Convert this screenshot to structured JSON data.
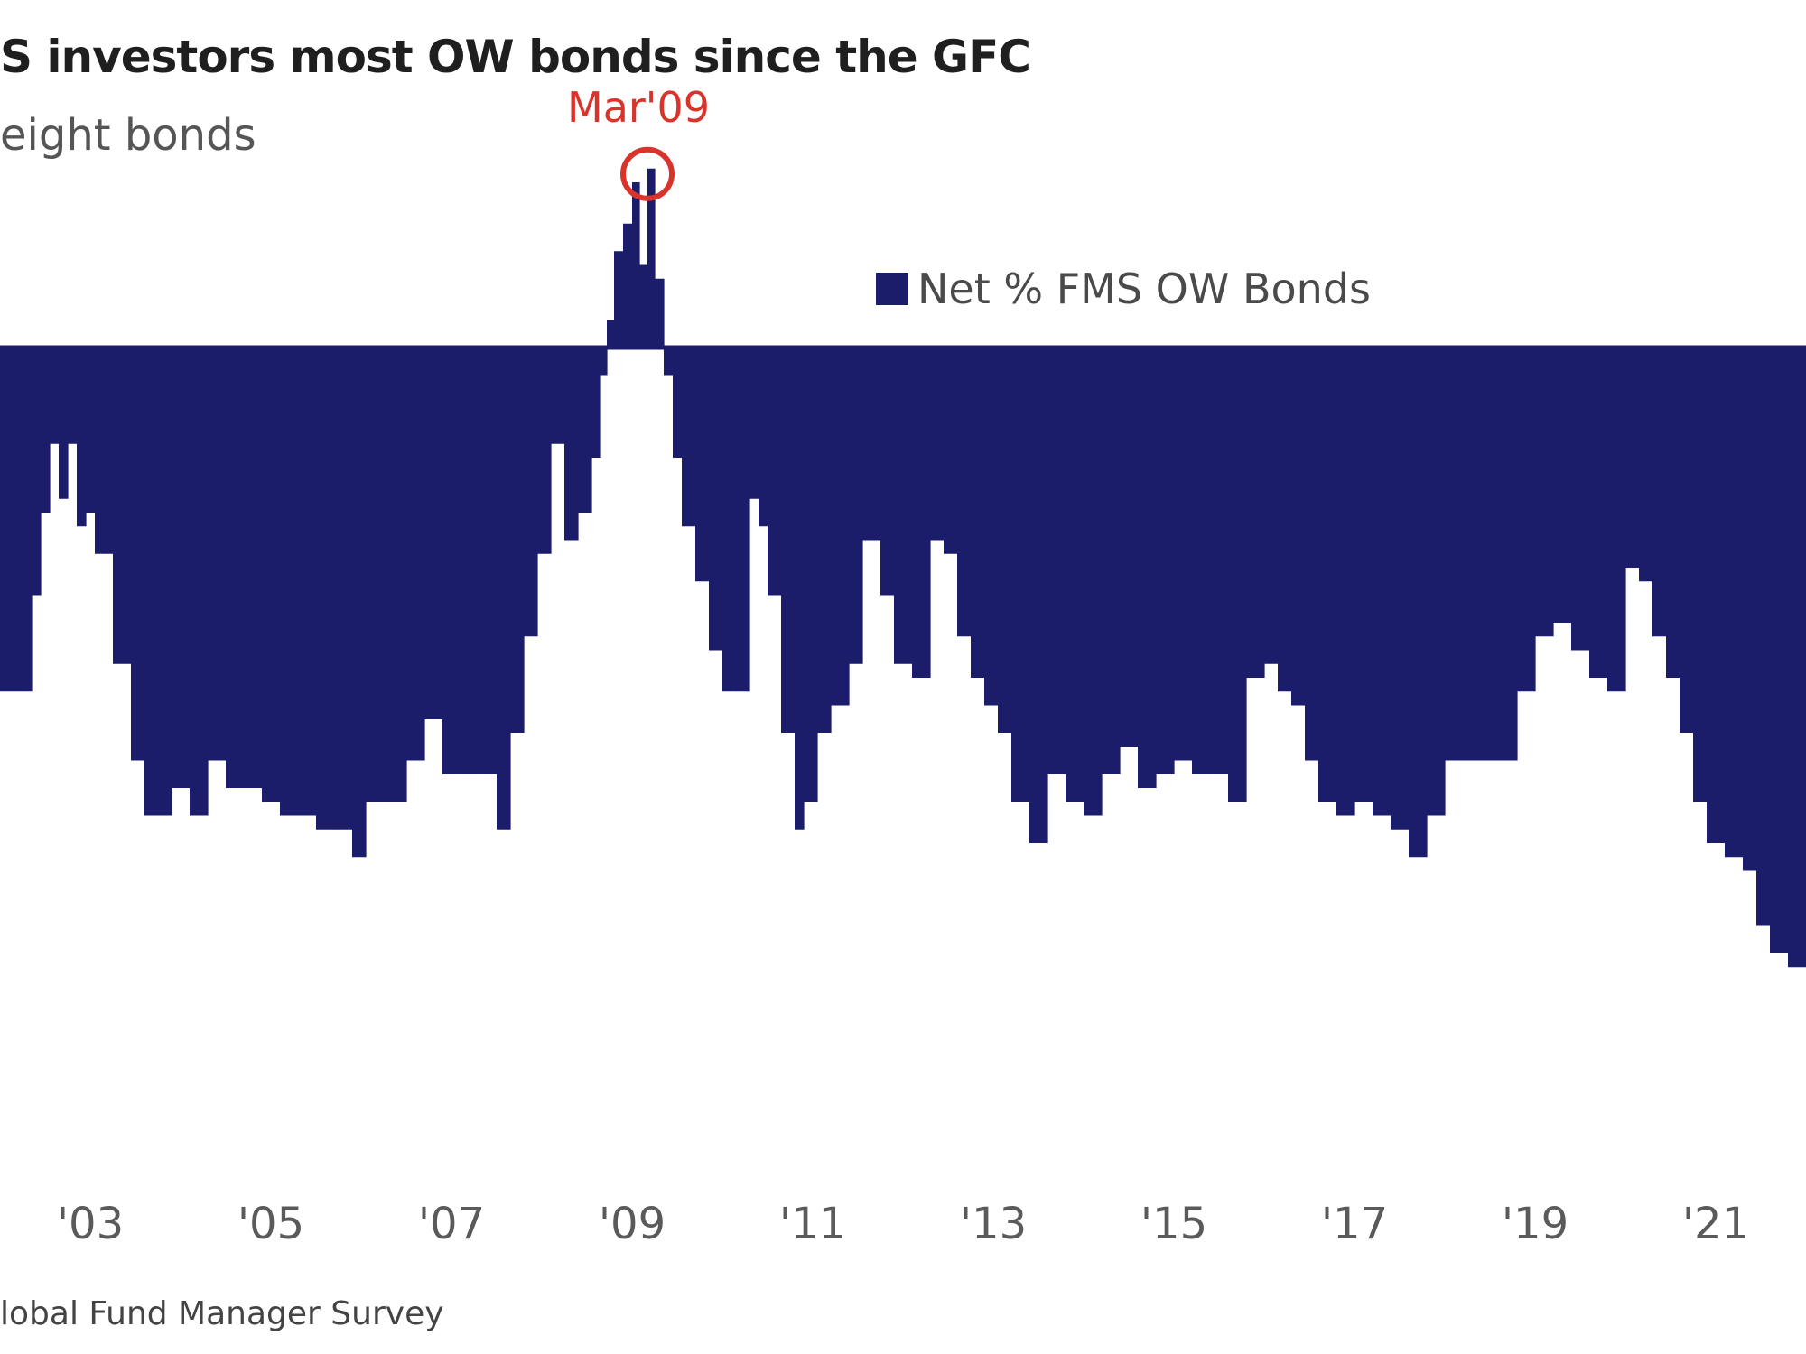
{
  "title": "S investors most OW bonds since the GFC",
  "subtitle": "eight bonds",
  "source": "lobal Fund Manager Survey",
  "colors": {
    "bar": "#1b1d6b",
    "annotation": "#d9342b",
    "tick": "#5a5a5a"
  },
  "chart_data": {
    "type": "area",
    "series": [
      {
        "name": "Net % FMS OW Bonds",
        "color": "#1b1d6b"
      }
    ],
    "x_tick_labels": [
      "'03",
      "'05",
      "'07",
      "'09",
      "'11",
      "'13",
      "'15",
      "'17",
      "'19",
      "'21"
    ],
    "x_tick_years": [
      2003,
      2005,
      2007,
      2009,
      2011,
      2013,
      2015,
      2017,
      2019,
      2021
    ],
    "xlim": [
      2002.0,
      2022.0
    ],
    "ylim": [
      -60,
      20
    ],
    "zero_line": true,
    "legend": {
      "label": "Net % FMS OW Bonds",
      "position": "top-center"
    },
    "annotation": {
      "label": "Mar'09",
      "x": 2009.17,
      "y": 13
    },
    "points": [
      [
        2002.0,
        -25
      ],
      [
        2002.25,
        -25
      ],
      [
        2002.35,
        -18
      ],
      [
        2002.45,
        -12
      ],
      [
        2002.55,
        -7
      ],
      [
        2002.65,
        -11
      ],
      [
        2002.75,
        -7
      ],
      [
        2002.85,
        -13
      ],
      [
        2002.95,
        -12
      ],
      [
        2003.05,
        -15
      ],
      [
        2003.25,
        -23
      ],
      [
        2003.45,
        -30
      ],
      [
        2003.6,
        -34
      ],
      [
        2003.75,
        -34
      ],
      [
        2003.9,
        -32
      ],
      [
        2004.1,
        -34
      ],
      [
        2004.3,
        -30
      ],
      [
        2004.5,
        -32
      ],
      [
        2004.7,
        -32
      ],
      [
        2004.9,
        -33
      ],
      [
        2005.1,
        -34
      ],
      [
        2005.3,
        -34
      ],
      [
        2005.5,
        -35
      ],
      [
        2005.7,
        -35
      ],
      [
        2005.9,
        -37
      ],
      [
        2006.05,
        -33
      ],
      [
        2006.3,
        -33
      ],
      [
        2006.5,
        -30
      ],
      [
        2006.7,
        -27
      ],
      [
        2006.9,
        -31
      ],
      [
        2007.1,
        -31
      ],
      [
        2007.3,
        -31
      ],
      [
        2007.5,
        -35
      ],
      [
        2007.65,
        -28
      ],
      [
        2007.8,
        -21
      ],
      [
        2007.95,
        -15
      ],
      [
        2008.1,
        -7
      ],
      [
        2008.25,
        -14
      ],
      [
        2008.4,
        -12
      ],
      [
        2008.55,
        -8
      ],
      [
        2008.65,
        -2
      ],
      [
        2008.72,
        2
      ],
      [
        2008.8,
        7
      ],
      [
        2008.9,
        9
      ],
      [
        2009.0,
        12
      ],
      [
        2009.08,
        6
      ],
      [
        2009.17,
        13
      ],
      [
        2009.25,
        5
      ],
      [
        2009.35,
        -2
      ],
      [
        2009.45,
        -8
      ],
      [
        2009.55,
        -13
      ],
      [
        2009.7,
        -17
      ],
      [
        2009.85,
        -22
      ],
      [
        2010.0,
        -25
      ],
      [
        2010.15,
        -25
      ],
      [
        2010.3,
        -11
      ],
      [
        2010.4,
        -13
      ],
      [
        2010.5,
        -18
      ],
      [
        2010.65,
        -28
      ],
      [
        2010.8,
        -35
      ],
      [
        2010.9,
        -33
      ],
      [
        2011.05,
        -28
      ],
      [
        2011.2,
        -26
      ],
      [
        2011.4,
        -23
      ],
      [
        2011.55,
        -14
      ],
      [
        2011.75,
        -18
      ],
      [
        2011.9,
        -23
      ],
      [
        2012.1,
        -24
      ],
      [
        2012.3,
        -14
      ],
      [
        2012.45,
        -15
      ],
      [
        2012.6,
        -21
      ],
      [
        2012.75,
        -24
      ],
      [
        2012.9,
        -26
      ],
      [
        2013.05,
        -28
      ],
      [
        2013.2,
        -33
      ],
      [
        2013.4,
        -36
      ],
      [
        2013.6,
        -31
      ],
      [
        2013.8,
        -33
      ],
      [
        2014.0,
        -34
      ],
      [
        2014.2,
        -31
      ],
      [
        2014.4,
        -29
      ],
      [
        2014.6,
        -32
      ],
      [
        2014.8,
        -31
      ],
      [
        2015.0,
        -30
      ],
      [
        2015.2,
        -31
      ],
      [
        2015.4,
        -31
      ],
      [
        2015.6,
        -33
      ],
      [
        2015.8,
        -24
      ],
      [
        2016.0,
        -23
      ],
      [
        2016.15,
        -25
      ],
      [
        2016.3,
        -26
      ],
      [
        2016.45,
        -30
      ],
      [
        2016.6,
        -33
      ],
      [
        2016.8,
        -34
      ],
      [
        2017.0,
        -33
      ],
      [
        2017.2,
        -34
      ],
      [
        2017.4,
        -35
      ],
      [
        2017.6,
        -37
      ],
      [
        2017.8,
        -34
      ],
      [
        2018.0,
        -30
      ],
      [
        2018.2,
        -30
      ],
      [
        2018.4,
        -30
      ],
      [
        2018.6,
        -30
      ],
      [
        2018.8,
        -25
      ],
      [
        2019.0,
        -21
      ],
      [
        2019.2,
        -20
      ],
      [
        2019.4,
        -22
      ],
      [
        2019.6,
        -24
      ],
      [
        2019.8,
        -25
      ],
      [
        2020.0,
        -16
      ],
      [
        2020.15,
        -17
      ],
      [
        2020.3,
        -21
      ],
      [
        2020.45,
        -24
      ],
      [
        2020.6,
        -28
      ],
      [
        2020.75,
        -33
      ],
      [
        2020.9,
        -36
      ],
      [
        2021.1,
        -37
      ],
      [
        2021.3,
        -38
      ],
      [
        2021.45,
        -42
      ],
      [
        2021.6,
        -44
      ],
      [
        2021.8,
        -45
      ],
      [
        2022.0,
        -45
      ]
    ]
  }
}
